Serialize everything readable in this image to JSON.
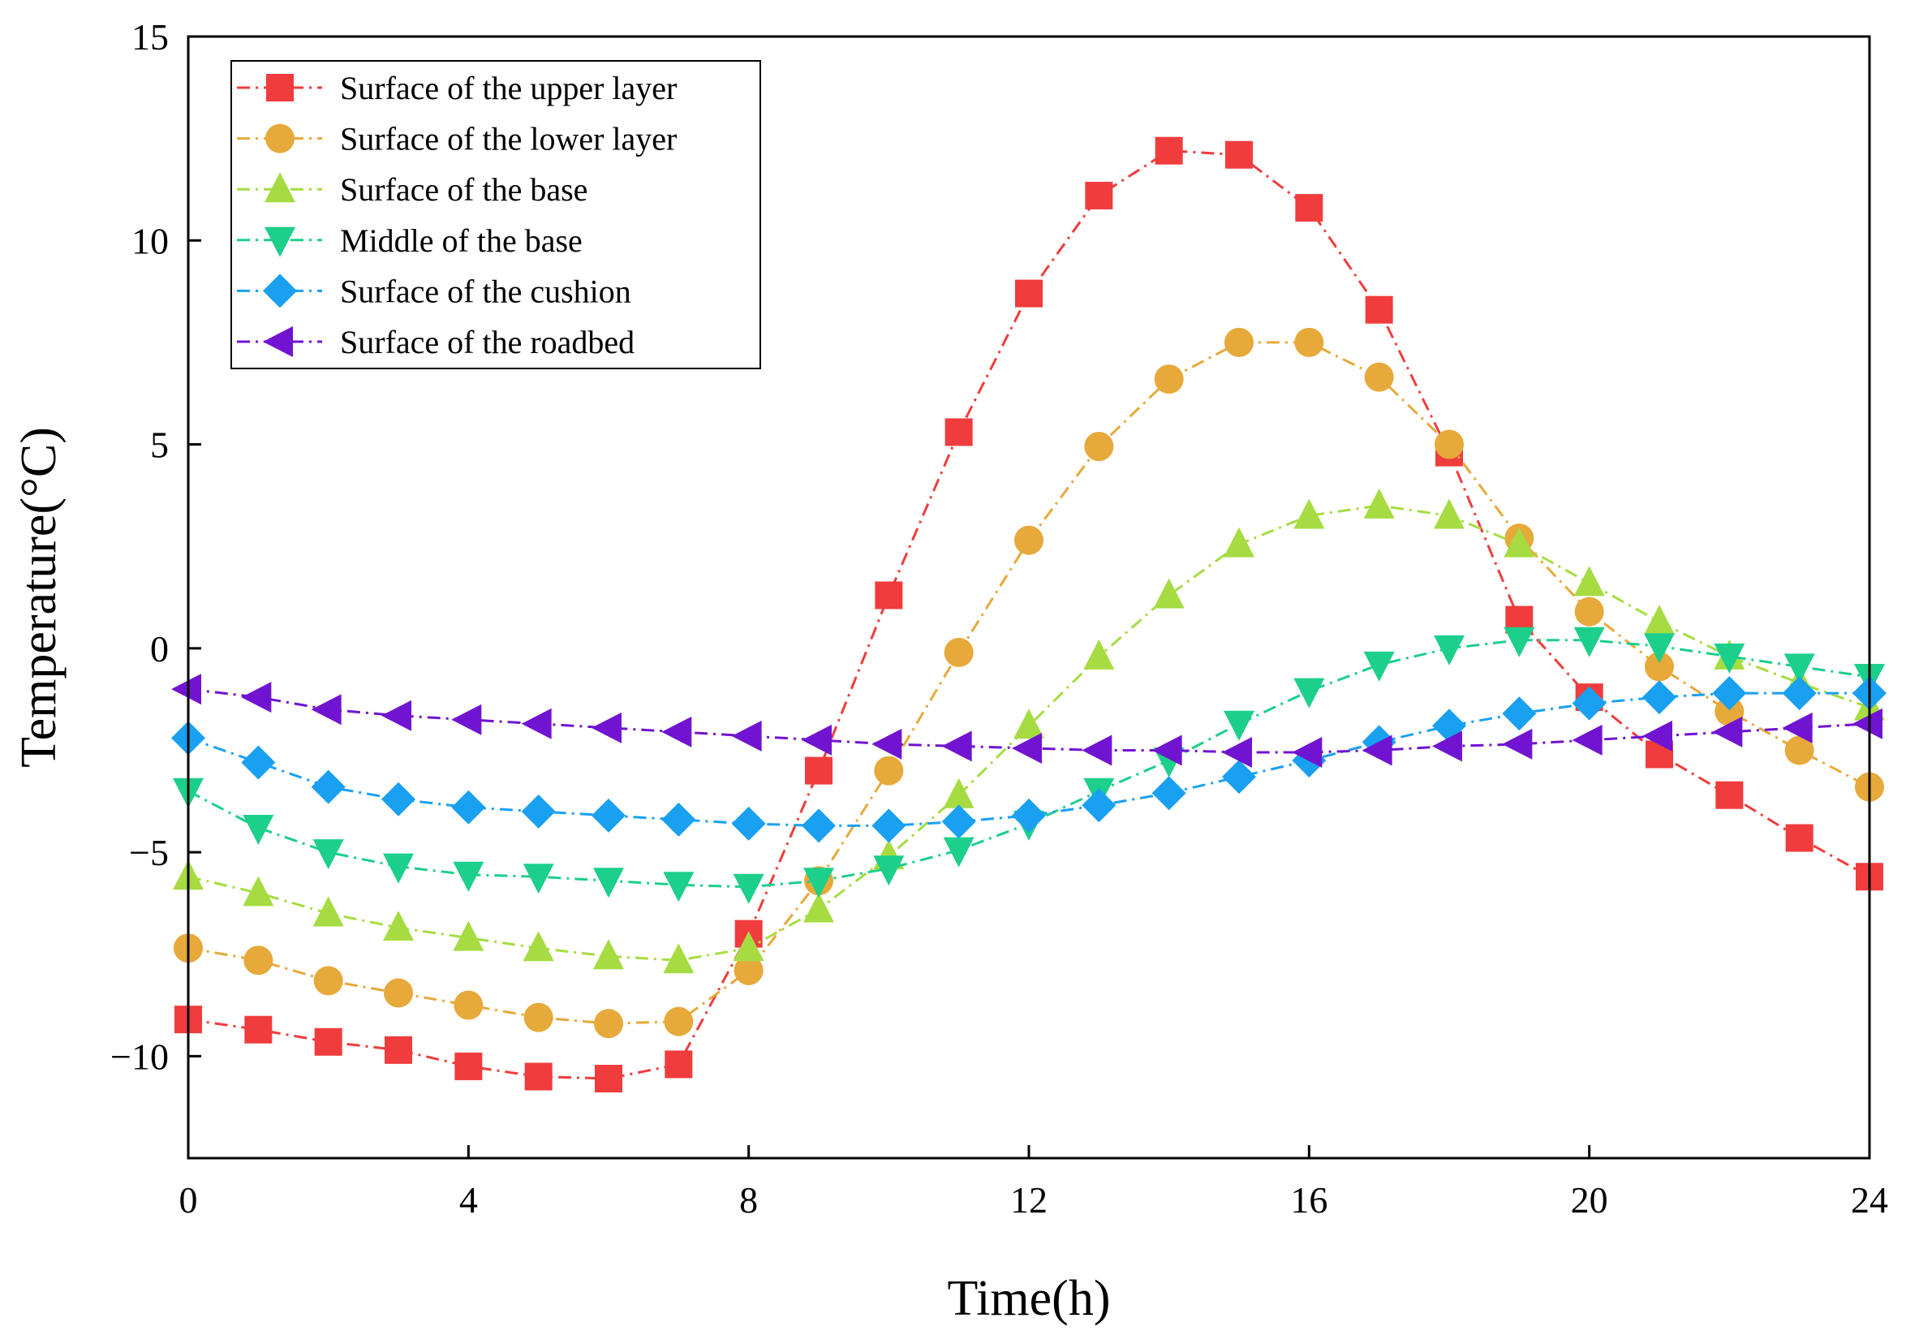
{
  "chart_data": {
    "type": "line",
    "xlabel": "Time(h)",
    "ylabel": "Temperature(°C)",
    "xlim": [
      0,
      24
    ],
    "ylim": [
      -12.5,
      15
    ],
    "x_ticks": [
      0,
      4,
      8,
      12,
      16,
      20,
      24
    ],
    "y_ticks": [
      -10,
      -5,
      0,
      5,
      10,
      15
    ],
    "y_tick_labels": [
      "−10",
      "−5",
      "0",
      "5",
      "10",
      "15"
    ],
    "grid": false,
    "legend_position": "top-left",
    "line_style": "dash-dot",
    "x": [
      0,
      1,
      2,
      3,
      4,
      5,
      6,
      7,
      8,
      9,
      10,
      11,
      12,
      13,
      14,
      15,
      16,
      17,
      18,
      19,
      20,
      21,
      22,
      23,
      24
    ],
    "series": [
      {
        "name": "Surface of the upper layer",
        "color": "#f03c3c",
        "marker": "square",
        "values": [
          -9.1,
          -9.35,
          -9.65,
          -9.85,
          -10.25,
          -10.5,
          -10.55,
          -10.2,
          -7.0,
          -3.0,
          1.3,
          5.3,
          8.7,
          11.1,
          12.2,
          12.1,
          10.8,
          8.3,
          4.8,
          0.7,
          -1.2,
          -2.6,
          -3.6,
          -4.65,
          -5.6
        ]
      },
      {
        "name": "Surface of the lower layer",
        "color": "#e6a93a",
        "marker": "circle",
        "values": [
          -7.35,
          -7.65,
          -8.15,
          -8.45,
          -8.75,
          -9.05,
          -9.2,
          -9.15,
          -7.9,
          -5.7,
          -3.0,
          -0.1,
          2.65,
          4.95,
          6.6,
          7.5,
          7.5,
          6.65,
          5.0,
          2.7,
          0.9,
          -0.45,
          -1.55,
          -2.5,
          -3.4
        ]
      },
      {
        "name": "Surface of the base",
        "color": "#a6dc42",
        "marker": "triangle-up",
        "values": [
          -5.6,
          -6.0,
          -6.5,
          -6.85,
          -7.1,
          -7.35,
          -7.55,
          -7.65,
          -7.35,
          -6.4,
          -5.1,
          -3.6,
          -1.9,
          -0.2,
          1.3,
          2.55,
          3.25,
          3.5,
          3.25,
          2.55,
          1.6,
          0.65,
          -0.2,
          -0.85,
          -1.45
        ]
      },
      {
        "name": "Middle of the base",
        "color": "#1ccf8a",
        "marker": "triangle-down",
        "values": [
          -3.5,
          -4.4,
          -5.0,
          -5.35,
          -5.55,
          -5.6,
          -5.7,
          -5.8,
          -5.85,
          -5.7,
          -5.4,
          -4.95,
          -4.3,
          -3.5,
          -2.75,
          -1.85,
          -1.05,
          -0.4,
          0.0,
          0.2,
          0.2,
          0.05,
          -0.2,
          -0.45,
          -0.7
        ]
      },
      {
        "name": "Surface of the cushion",
        "color": "#1aa0f0",
        "marker": "diamond",
        "values": [
          -2.2,
          -2.8,
          -3.4,
          -3.7,
          -3.9,
          -4.0,
          -4.1,
          -4.2,
          -4.3,
          -4.35,
          -4.35,
          -4.25,
          -4.1,
          -3.85,
          -3.55,
          -3.15,
          -2.75,
          -2.3,
          -1.9,
          -1.6,
          -1.35,
          -1.2,
          -1.1,
          -1.1,
          -1.1
        ]
      },
      {
        "name": "Surface of the roadbed",
        "color": "#7014d2",
        "marker": "triangle-left",
        "values": [
          -1.0,
          -1.2,
          -1.5,
          -1.65,
          -1.75,
          -1.85,
          -1.95,
          -2.05,
          -2.15,
          -2.25,
          -2.35,
          -2.4,
          -2.45,
          -2.5,
          -2.5,
          -2.55,
          -2.55,
          -2.5,
          -2.4,
          -2.35,
          -2.25,
          -2.15,
          -2.05,
          -1.95,
          -1.85
        ]
      }
    ]
  }
}
